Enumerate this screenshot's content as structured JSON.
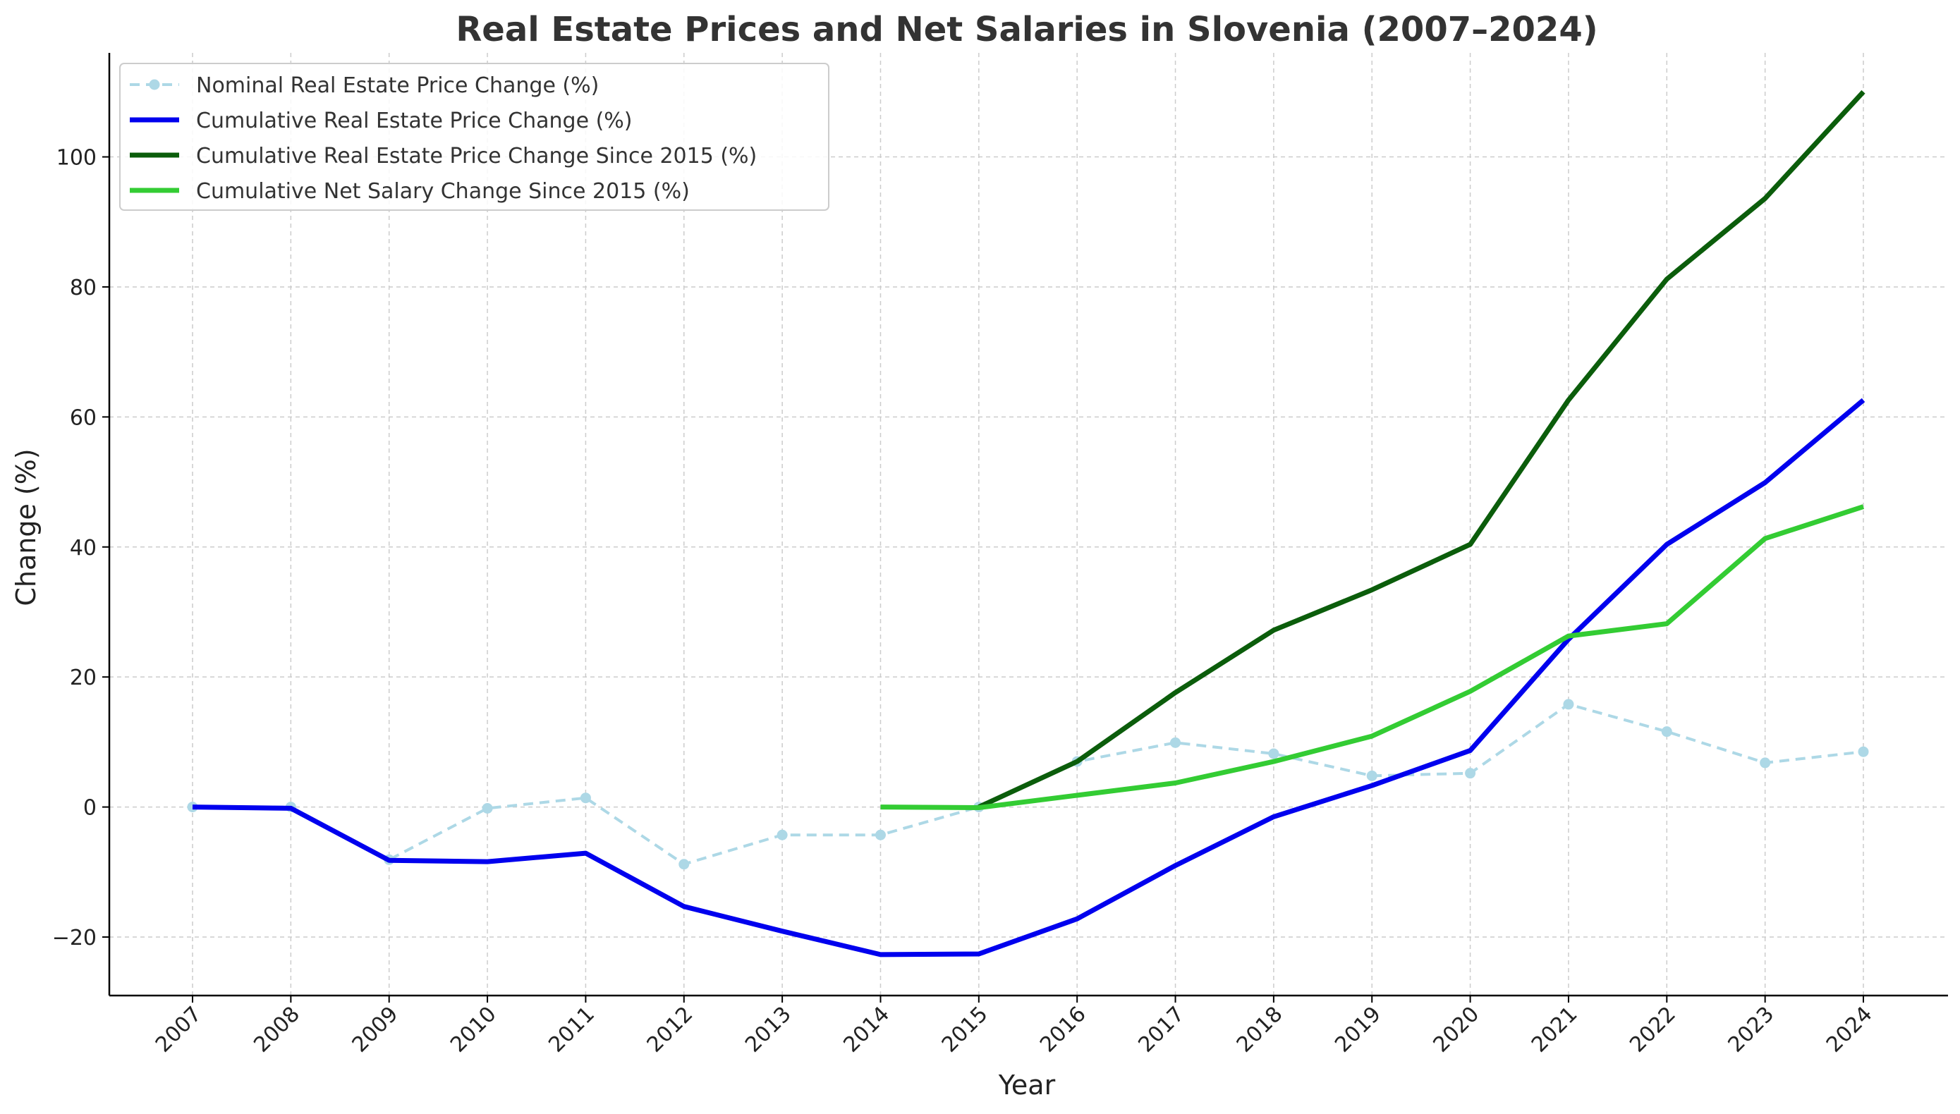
{
  "chart_data": {
    "type": "line",
    "title": "Real Estate Prices and Net Salaries in Slovenia (2007–2024)",
    "xlabel": "Year",
    "ylabel": "Change (%)",
    "categories": [
      "2007",
      "2008",
      "2009",
      "2010",
      "2011",
      "2012",
      "2013",
      "2014",
      "2015",
      "2016",
      "2017",
      "2018",
      "2019",
      "2020",
      "2021",
      "2022",
      "2023",
      "2024"
    ],
    "ylim": [
      -29,
      116
    ],
    "yticks": [
      -20,
      0,
      20,
      40,
      60,
      80,
      100
    ],
    "ytick_labels": [
      "−20",
      "0",
      "20",
      "40",
      "60",
      "80",
      "100"
    ],
    "grid": true,
    "legend_position": "top-left",
    "series": [
      {
        "name": "Nominal Real Estate Price Change (%)",
        "color": "#add8e6",
        "style": "dashed-marker",
        "values": [
          0,
          0,
          -8.1,
          -0.2,
          1.4,
          -8.8,
          -4.3,
          -4.3,
          0,
          7.0,
          9.9,
          8.2,
          4.8,
          5.2,
          15.8,
          11.6,
          6.8,
          8.5
        ]
      },
      {
        "name": "Cumulative Real Estate Price Change (%)",
        "color": "#0000ee",
        "style": "solid",
        "values": [
          0,
          -0.2,
          -8.2,
          -8.4,
          -7.1,
          -15.3,
          -19.1,
          -22.7,
          -22.6,
          -17.2,
          -9.0,
          -1.5,
          3.3,
          8.7,
          25.8,
          40.4,
          49.9,
          62.6
        ]
      },
      {
        "name": "Cumulative Real Estate Price Change Since 2015 (%)",
        "color": "#0b5d0b",
        "style": "solid",
        "values": [
          null,
          null,
          null,
          null,
          null,
          null,
          null,
          null,
          0,
          7.0,
          17.6,
          27.2,
          33.4,
          40.4,
          62.6,
          81.2,
          93.6,
          110.0
        ]
      },
      {
        "name": "Cumulative Net Salary Change Since 2015 (%)",
        "color": "#33cc33",
        "style": "solid",
        "values": [
          null,
          null,
          null,
          null,
          null,
          null,
          null,
          0,
          -0.1,
          1.8,
          3.7,
          7.0,
          10.9,
          17.8,
          26.3,
          28.2,
          41.3,
          46.2
        ]
      }
    ]
  }
}
